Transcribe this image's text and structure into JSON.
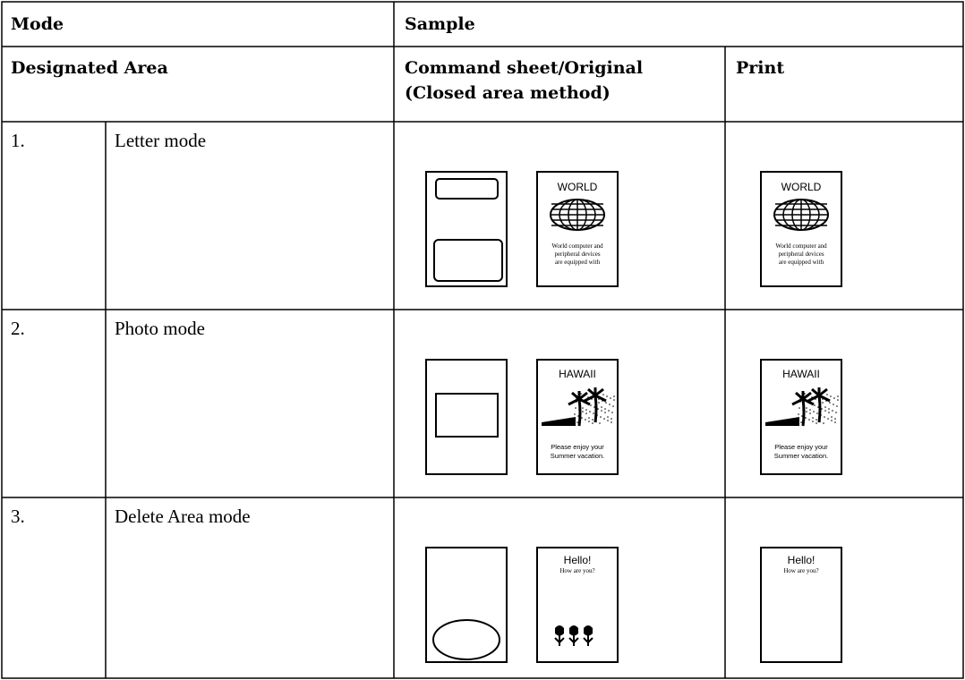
{
  "table": {
    "header": {
      "mode": "Mode",
      "sample": "Sample"
    },
    "subheader": {
      "designated_area": "Designated Area",
      "command_sheet": [
        "Command sheet/Original",
        "(Closed area method)"
      ],
      "print": "Print"
    },
    "rows": [
      {
        "number": "1.",
        "mode": "Letter mode",
        "original": [
          "WORLD",
          "World computer and",
          "peripheral devices",
          "are equipped with"
        ],
        "print": [
          "WORLD",
          "World computer and",
          "peripheral devices",
          "are equipped with"
        ]
      },
      {
        "number": "2.",
        "mode": "Photo mode",
        "original": [
          "HAWAII",
          "Please enjoy your",
          "Summer vacation."
        ],
        "print": [
          "HAWAII",
          "Please enjoy your",
          "Summer vacation."
        ]
      },
      {
        "number": "3.",
        "mode": "Delete Area mode",
        "original": [
          "Hello!",
          "How are you?"
        ],
        "print": [
          "Hello!",
          "How are you?"
        ]
      }
    ]
  }
}
